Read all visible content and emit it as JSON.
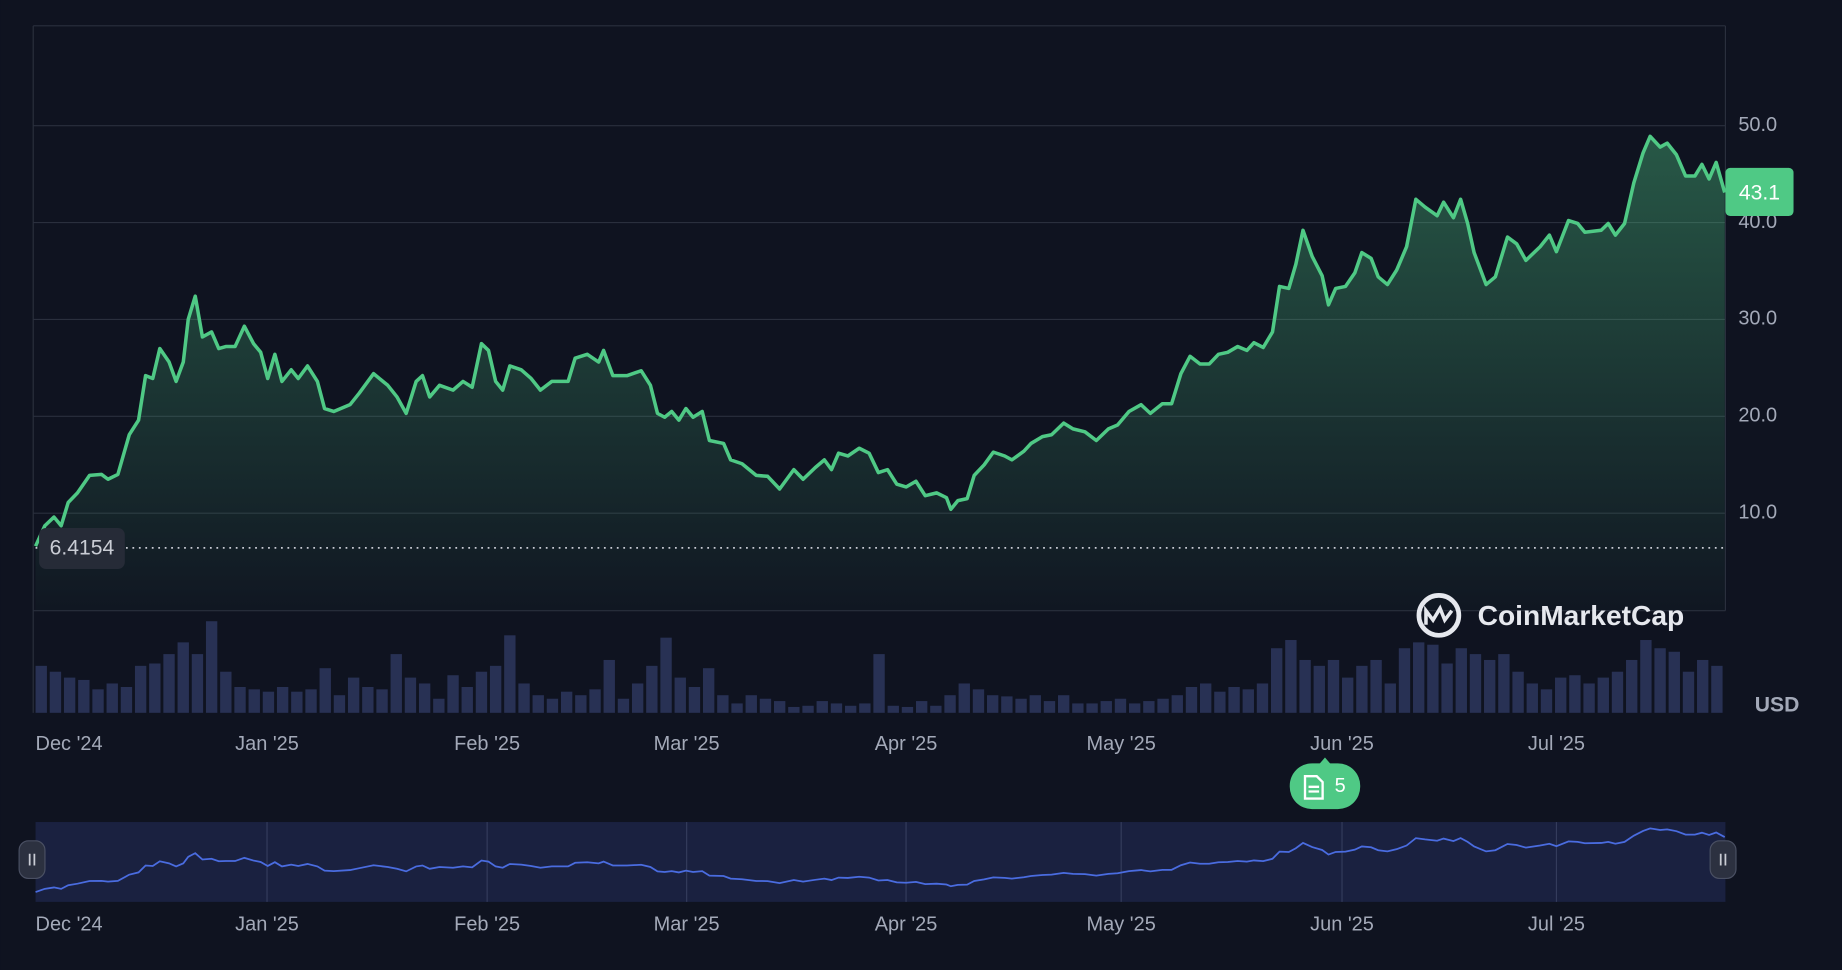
{
  "chart_data": {
    "type": "line",
    "color": "#4fc985",
    "x": [
      0,
      1.3,
      2.6,
      3.6,
      4.6,
      5.9,
      7.6,
      9.3,
      10.2,
      11.6,
      13.2,
      14.5,
      15.5,
      16.5,
      17.5,
      18.8,
      19.8,
      20.8,
      21.5,
      22.5,
      23.5,
      24.8,
      25.8,
      26.8,
      28.1,
      29.4,
      30.7,
      31.7,
      32.7,
      33.7,
      34.7,
      36.0,
      37.0,
      38.3,
      39.7,
      40.7,
      42.0,
      44.3,
      45.6,
      47.6,
      49.6,
      50.9,
      52.2,
      53.6,
      54.5,
      55.5,
      56.9,
      58.8,
      60.2,
      61.5,
      62.8,
      63.8,
      64.8,
      65.8,
      66.8,
      68.4,
      69.8,
      71.1,
      72.7,
      75.0,
      76.0,
      77.7,
      79.3,
      80.0,
      81.3,
      83.3,
      85.3,
      86.6,
      87.6,
      88.6,
      89.6,
      90.6,
      91.6,
      92.6,
      93.9,
      94.9,
      96.9,
      97.9,
      99.5,
      101.5,
      103.1,
      104.8,
      106.8,
      108.1,
      109.8,
      111.1,
      112.1,
      113.1,
      114.4,
      116.0,
      117.4,
      118.7,
      120.0,
      121.3,
      122.6,
      124.0,
      125.3,
      126.9,
      128.3,
      128.9,
      129.9,
      131.2,
      132.2,
      133.6,
      134.9,
      136.5,
      137.5,
      139.2,
      140.2,
      141.8,
      143.1,
      144.8,
      146.1,
      147.8,
      149.4,
      151.1,
      152.4,
      154.0,
      155.7,
      157.0,
      158.7,
      160.0,
      161.3,
      162.6,
      164.0,
      165.3,
      166.6,
      167.9,
      169.3,
      170.6,
      171.6,
      172.9,
      174.2,
      175.2,
      176.5,
      177.5,
      178.5,
      179.8,
      181.2,
      182.1,
      183.1,
      184.5,
      185.8,
      186.8,
      188.1,
      189.1,
      190.4,
      191.7,
      193.1,
      194.4,
      195.7,
      197.4,
      198.3,
      199.7,
      200.7,
      201.7,
      202.6,
      204.3,
      205.6,
      207.3,
      208.6,
      209.9,
      211.9,
      213.2,
      214.2,
      215.9,
      217.2,
      218.2,
      220.5,
      221.5,
      222.5,
      223.8,
      225.1,
      226.4,
      227.4,
      228.8,
      229.8,
      231.1,
      232.4,
      233.7,
      234.7,
      235.7,
      236.7,
      237.9
    ],
    "values": [
      6.6,
      8.7,
      9.6,
      8.7,
      11.1,
      12.1,
      13.9,
      14.0,
      13.5,
      14.0,
      18.1,
      19.6,
      24.2,
      23.9,
      27.0,
      25.6,
      23.6,
      25.6,
      30.0,
      32.4,
      28.2,
      28.7,
      27.0,
      27.2,
      27.2,
      29.3,
      27.5,
      26.6,
      23.9,
      26.4,
      23.6,
      24.8,
      23.9,
      25.2,
      23.6,
      20.8,
      20.5,
      21.2,
      22.4,
      24.4,
      23.2,
      22.0,
      20.3,
      23.6,
      24.2,
      22.0,
      23.2,
      22.7,
      23.6,
      23.0,
      27.5,
      26.8,
      23.6,
      22.7,
      25.2,
      24.8,
      23.9,
      22.7,
      23.6,
      23.6,
      26.0,
      26.4,
      25.6,
      26.8,
      24.2,
      24.2,
      24.7,
      23.2,
      20.3,
      19.9,
      20.5,
      19.6,
      20.8,
      19.9,
      20.5,
      17.5,
      17.2,
      15.5,
      15.1,
      13.9,
      13.8,
      12.5,
      14.5,
      13.5,
      14.7,
      15.5,
      14.5,
      16.2,
      15.9,
      16.7,
      16.2,
      14.2,
      14.5,
      13.0,
      12.7,
      13.3,
      11.8,
      12.1,
      11.6,
      10.4,
      11.3,
      11.5,
      13.9,
      15.0,
      16.3,
      15.9,
      15.5,
      16.4,
      17.2,
      17.9,
      18.1,
      19.3,
      18.7,
      18.4,
      17.5,
      18.7,
      19.1,
      20.5,
      21.2,
      20.3,
      21.3,
      21.3,
      24.4,
      26.2,
      25.4,
      25.4,
      26.4,
      26.6,
      27.2,
      26.8,
      27.6,
      27.1,
      28.7,
      33.4,
      33.2,
      35.7,
      39.2,
      36.5,
      34.5,
      31.5,
      33.2,
      33.4,
      34.8,
      36.9,
      36.3,
      34.4,
      33.6,
      35.1,
      37.5,
      42.4,
      41.6,
      40.7,
      42.1,
      40.5,
      42.4,
      39.9,
      36.9,
      33.6,
      34.4,
      38.5,
      37.8,
      36.1,
      37.5,
      38.7,
      37.0,
      40.2,
      39.9,
      39.0,
      39.2,
      39.9,
      38.7,
      39.9,
      44.1,
      47.2,
      48.9,
      47.8,
      48.2,
      47.0,
      44.8,
      44.8,
      46.0,
      44.5,
      46.2,
      43.1
    ],
    "xlim": [
      0,
      238
    ],
    "xticks": [
      {
        "value": 0,
        "label": "Dec '24"
      },
      {
        "value": 32.6,
        "label": "Jan '25"
      },
      {
        "value": 63.6,
        "label": "Feb '25"
      },
      {
        "value": 91.7,
        "label": "Mar '25"
      },
      {
        "value": 122.6,
        "label": "Apr '25"
      },
      {
        "value": 152.9,
        "label": "May '25"
      },
      {
        "value": 184,
        "label": "Jun '25"
      },
      {
        "value": 214.2,
        "label": "Jul '25"
      }
    ],
    "ylim": [
      0,
      60
    ],
    "yticks": [
      {
        "value": 10,
        "label": "10.0"
      },
      {
        "value": 20,
        "label": "20.0"
      },
      {
        "value": 30,
        "label": "30.0"
      },
      {
        "value": 40,
        "label": "40.0"
      },
      {
        "value": 50,
        "label": "50.0"
      }
    ],
    "grid": true,
    "open_price": 6.4154,
    "current_price": 43.1,
    "currency": "USD",
    "watermark": "CoinMarketCap",
    "news_count": 5,
    "volume": {
      "color": "#283154",
      "ylim": [
        0,
        87
      ],
      "x": [
        0,
        2,
        4,
        6,
        8,
        10,
        12,
        14,
        16,
        18,
        20,
        22,
        24,
        26,
        28,
        30,
        32,
        34,
        36,
        38,
        40,
        42,
        44,
        46,
        48,
        50,
        52,
        54,
        56,
        58,
        60,
        62,
        64,
        66,
        68,
        70,
        72,
        74,
        76,
        78,
        80,
        82,
        84,
        86,
        88,
        90,
        92,
        94,
        96,
        98,
        100,
        102,
        104,
        106,
        108,
        110,
        112,
        114,
        116,
        118,
        120,
        122,
        124,
        126,
        128,
        130,
        132,
        134,
        136,
        138,
        140,
        142,
        144,
        146,
        148,
        150,
        152,
        154,
        156,
        158,
        160,
        162,
        164,
        166,
        168,
        170,
        172,
        174,
        176,
        178,
        180,
        182,
        184,
        186,
        188,
        190,
        192,
        194,
        196,
        198,
        200,
        202,
        204,
        206,
        208,
        210,
        212,
        214,
        216,
        218,
        220,
        222,
        224,
        226,
        228,
        230,
        232,
        234,
        236
      ],
      "values": [
        40,
        35,
        30,
        28,
        20,
        25,
        22,
        40,
        42,
        50,
        60,
        50,
        78,
        35,
        22,
        20,
        18,
        22,
        18,
        20,
        38,
        15,
        30,
        22,
        20,
        50,
        30,
        25,
        12,
        32,
        22,
        35,
        40,
        66,
        25,
        15,
        12,
        18,
        15,
        20,
        45,
        12,
        25,
        40,
        64,
        30,
        22,
        38,
        15,
        8,
        15,
        12,
        10,
        5,
        6,
        10,
        8,
        6,
        8,
        50,
        6,
        5,
        10,
        6,
        15,
        25,
        20,
        15,
        14,
        12,
        15,
        10,
        15,
        8,
        8,
        10,
        12,
        8,
        10,
        12,
        15,
        22,
        25,
        18,
        22,
        20,
        25,
        55,
        62,
        45,
        40,
        45,
        30,
        40,
        45,
        25,
        55,
        60,
        58,
        42,
        55,
        50,
        45,
        50,
        35,
        25,
        20,
        30,
        32,
        25,
        30,
        35,
        45,
        62,
        55,
        52,
        35,
        45,
        40
      ]
    }
  }
}
